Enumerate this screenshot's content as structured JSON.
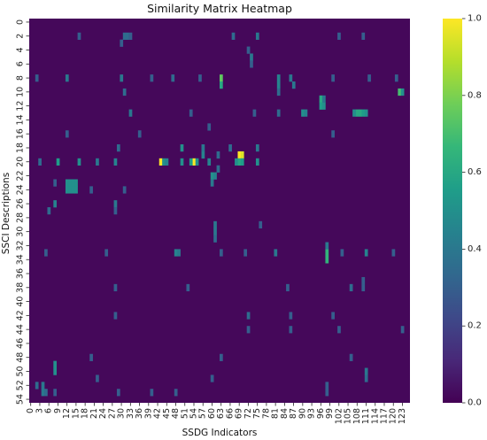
{
  "chart_data": {
    "type": "heatmap",
    "title": "Similarity Matrix Heatmap",
    "xlabel": "SSDG Indicators",
    "ylabel": "SSCI Descriptions",
    "n_cols": 126,
    "n_rows": 55,
    "x_ticks": [
      0,
      3,
      6,
      9,
      12,
      15,
      18,
      21,
      24,
      27,
      30,
      33,
      36,
      39,
      42,
      45,
      48,
      51,
      54,
      57,
      60,
      63,
      66,
      69,
      72,
      75,
      78,
      81,
      84,
      87,
      90,
      93,
      96,
      99,
      102,
      105,
      108,
      111,
      114,
      117,
      120,
      123
    ],
    "y_ticks": [
      0,
      2,
      4,
      6,
      8,
      10,
      12,
      14,
      16,
      18,
      20,
      22,
      24,
      26,
      28,
      30,
      32,
      34,
      36,
      38,
      40,
      42,
      44,
      46,
      48,
      50,
      52,
      54
    ],
    "value_range": [
      0,
      1
    ],
    "colormap": "viridis",
    "colorbar_ticks": [
      0.0,
      0.2,
      0.4,
      0.6,
      0.8,
      1.0
    ],
    "colorbar_tick_labels": [
      "0.0",
      "0.2",
      "0.4",
      "0.6",
      "0.8",
      "1.0"
    ],
    "base_value": 0.02,
    "cells": [
      {
        "r": 20,
        "c": 43,
        "v": 1.0
      },
      {
        "r": 20,
        "c": 54,
        "v": 1.0
      },
      {
        "r": 19,
        "c": 69,
        "v": 1.0
      },
      {
        "r": 19,
        "c": 70,
        "v": 0.95
      },
      {
        "r": 20,
        "c": 69,
        "v": 0.6
      },
      {
        "r": 20,
        "c": 70,
        "v": 0.55
      },
      {
        "r": 20,
        "c": 68,
        "v": 0.5
      },
      {
        "r": 20,
        "c": 44,
        "v": 0.5
      },
      {
        "r": 20,
        "c": 45,
        "v": 0.45
      },
      {
        "r": 20,
        "c": 53,
        "v": 0.55
      },
      {
        "r": 20,
        "c": 55,
        "v": 0.5
      },
      {
        "r": 20,
        "c": 9,
        "v": 0.55
      },
      {
        "r": 20,
        "c": 16,
        "v": 0.5
      },
      {
        "r": 20,
        "c": 28,
        "v": 0.45
      },
      {
        "r": 20,
        "c": 50,
        "v": 0.5
      },
      {
        "r": 20,
        "c": 59,
        "v": 0.45
      },
      {
        "r": 20,
        "c": 75,
        "v": 0.5
      },
      {
        "r": 20,
        "c": 22,
        "v": 0.4
      },
      {
        "r": 20,
        "c": 3,
        "v": 0.35
      },
      {
        "r": 19,
        "c": 57,
        "v": 0.45
      },
      {
        "r": 19,
        "c": 62,
        "v": 0.35
      },
      {
        "r": 18,
        "c": 50,
        "v": 0.5
      },
      {
        "r": 18,
        "c": 57,
        "v": 0.4
      },
      {
        "r": 18,
        "c": 29,
        "v": 0.35
      },
      {
        "r": 18,
        "c": 66,
        "v": 0.35
      },
      {
        "r": 18,
        "c": 75,
        "v": 0.4
      },
      {
        "r": 23,
        "c": 12,
        "v": 0.5
      },
      {
        "r": 23,
        "c": 13,
        "v": 0.5
      },
      {
        "r": 23,
        "c": 14,
        "v": 0.5
      },
      {
        "r": 23,
        "c": 15,
        "v": 0.5
      },
      {
        "r": 24,
        "c": 12,
        "v": 0.5
      },
      {
        "r": 24,
        "c": 13,
        "v": 0.5
      },
      {
        "r": 24,
        "c": 14,
        "v": 0.5
      },
      {
        "r": 24,
        "c": 15,
        "v": 0.5
      },
      {
        "r": 22,
        "c": 60,
        "v": 0.5
      },
      {
        "r": 22,
        "c": 61,
        "v": 0.45
      },
      {
        "r": 23,
        "c": 60,
        "v": 0.4
      },
      {
        "r": 21,
        "c": 62,
        "v": 0.35
      },
      {
        "r": 26,
        "c": 8,
        "v": 0.45
      },
      {
        "r": 27,
        "c": 6,
        "v": 0.35
      },
      {
        "r": 26,
        "c": 28,
        "v": 0.4
      },
      {
        "r": 27,
        "c": 28,
        "v": 0.3
      },
      {
        "r": 24,
        "c": 20,
        "v": 0.3
      },
      {
        "r": 24,
        "c": 31,
        "v": 0.3
      },
      {
        "r": 23,
        "c": 8,
        "v": 0.3
      },
      {
        "r": 29,
        "c": 61,
        "v": 0.4
      },
      {
        "r": 30,
        "c": 61,
        "v": 0.4
      },
      {
        "r": 31,
        "c": 61,
        "v": 0.35
      },
      {
        "r": 29,
        "c": 76,
        "v": 0.3
      },
      {
        "r": 33,
        "c": 98,
        "v": 0.65
      },
      {
        "r": 34,
        "c": 98,
        "v": 0.65
      },
      {
        "r": 32,
        "c": 98,
        "v": 0.4
      },
      {
        "r": 33,
        "c": 48,
        "v": 0.45
      },
      {
        "r": 33,
        "c": 49,
        "v": 0.4
      },
      {
        "r": 33,
        "c": 81,
        "v": 0.4
      },
      {
        "r": 33,
        "c": 111,
        "v": 0.45
      },
      {
        "r": 33,
        "c": 63,
        "v": 0.3
      },
      {
        "r": 33,
        "c": 71,
        "v": 0.3
      },
      {
        "r": 33,
        "c": 5,
        "v": 0.3
      },
      {
        "r": 33,
        "c": 25,
        "v": 0.3
      },
      {
        "r": 33,
        "c": 103,
        "v": 0.3
      },
      {
        "r": 33,
        "c": 120,
        "v": 0.3
      },
      {
        "r": 8,
        "c": 63,
        "v": 0.75
      },
      {
        "r": 9,
        "c": 63,
        "v": 0.6
      },
      {
        "r": 8,
        "c": 82,
        "v": 0.45
      },
      {
        "r": 9,
        "c": 82,
        "v": 0.45
      },
      {
        "r": 8,
        "c": 86,
        "v": 0.4
      },
      {
        "r": 9,
        "c": 87,
        "v": 0.4
      },
      {
        "r": 8,
        "c": 12,
        "v": 0.4
      },
      {
        "r": 8,
        "c": 30,
        "v": 0.4
      },
      {
        "r": 8,
        "c": 47,
        "v": 0.35
      },
      {
        "r": 8,
        "c": 2,
        "v": 0.3
      },
      {
        "r": 8,
        "c": 40,
        "v": 0.3
      },
      {
        "r": 8,
        "c": 56,
        "v": 0.3
      },
      {
        "r": 8,
        "c": 100,
        "v": 0.3
      },
      {
        "r": 8,
        "c": 112,
        "v": 0.3
      },
      {
        "r": 8,
        "c": 121,
        "v": 0.3
      },
      {
        "r": 10,
        "c": 122,
        "v": 0.7
      },
      {
        "r": 10,
        "c": 123,
        "v": 0.5
      },
      {
        "r": 10,
        "c": 82,
        "v": 0.35
      },
      {
        "r": 10,
        "c": 31,
        "v": 0.35
      },
      {
        "r": 11,
        "c": 96,
        "v": 0.6
      },
      {
        "r": 12,
        "c": 96,
        "v": 0.55
      },
      {
        "r": 12,
        "c": 97,
        "v": 0.5
      },
      {
        "r": 11,
        "c": 97,
        "v": 0.4
      },
      {
        "r": 13,
        "c": 108,
        "v": 0.6
      },
      {
        "r": 13,
        "c": 109,
        "v": 0.6
      },
      {
        "r": 13,
        "c": 110,
        "v": 0.55
      },
      {
        "r": 13,
        "c": 111,
        "v": 0.5
      },
      {
        "r": 13,
        "c": 107,
        "v": 0.5
      },
      {
        "r": 13,
        "c": 90,
        "v": 0.5
      },
      {
        "r": 13,
        "c": 91,
        "v": 0.45
      },
      {
        "r": 13,
        "c": 33,
        "v": 0.4
      },
      {
        "r": 13,
        "c": 82,
        "v": 0.35
      },
      {
        "r": 13,
        "c": 53,
        "v": 0.3
      },
      {
        "r": 13,
        "c": 74,
        "v": 0.3
      },
      {
        "r": 2,
        "c": 31,
        "v": 0.35
      },
      {
        "r": 2,
        "c": 32,
        "v": 0.35
      },
      {
        "r": 2,
        "c": 33,
        "v": 0.3
      },
      {
        "r": 2,
        "c": 67,
        "v": 0.35
      },
      {
        "r": 2,
        "c": 75,
        "v": 0.4
      },
      {
        "r": 3,
        "c": 30,
        "v": 0.3
      },
      {
        "r": 5,
        "c": 73,
        "v": 0.4
      },
      {
        "r": 6,
        "c": 73,
        "v": 0.3
      },
      {
        "r": 4,
        "c": 72,
        "v": 0.3
      },
      {
        "r": 2,
        "c": 102,
        "v": 0.3
      },
      {
        "r": 2,
        "c": 110,
        "v": 0.3
      },
      {
        "r": 2,
        "c": 16,
        "v": 0.3
      },
      {
        "r": 16,
        "c": 12,
        "v": 0.3
      },
      {
        "r": 16,
        "c": 36,
        "v": 0.3
      },
      {
        "r": 15,
        "c": 59,
        "v": 0.3
      },
      {
        "r": 16,
        "c": 100,
        "v": 0.3
      },
      {
        "r": 38,
        "c": 28,
        "v": 0.3
      },
      {
        "r": 38,
        "c": 106,
        "v": 0.35
      },
      {
        "r": 38,
        "c": 110,
        "v": 0.3
      },
      {
        "r": 38,
        "c": 52,
        "v": 0.3
      },
      {
        "r": 38,
        "c": 85,
        "v": 0.3
      },
      {
        "r": 37,
        "c": 110,
        "v": 0.3
      },
      {
        "r": 42,
        "c": 72,
        "v": 0.35
      },
      {
        "r": 42,
        "c": 28,
        "v": 0.3
      },
      {
        "r": 42,
        "c": 100,
        "v": 0.3
      },
      {
        "r": 42,
        "c": 86,
        "v": 0.3
      },
      {
        "r": 44,
        "c": 72,
        "v": 0.3
      },
      {
        "r": 44,
        "c": 86,
        "v": 0.3
      },
      {
        "r": 44,
        "c": 102,
        "v": 0.3
      },
      {
        "r": 44,
        "c": 123,
        "v": 0.3
      },
      {
        "r": 48,
        "c": 20,
        "v": 0.3
      },
      {
        "r": 48,
        "c": 63,
        "v": 0.3
      },
      {
        "r": 48,
        "c": 106,
        "v": 0.3
      },
      {
        "r": 49,
        "c": 8,
        "v": 0.5
      },
      {
        "r": 50,
        "c": 8,
        "v": 0.5
      },
      {
        "r": 50,
        "c": 111,
        "v": 0.4
      },
      {
        "r": 51,
        "c": 111,
        "v": 0.35
      },
      {
        "r": 51,
        "c": 22,
        "v": 0.3
      },
      {
        "r": 51,
        "c": 60,
        "v": 0.3
      },
      {
        "r": 52,
        "c": 4,
        "v": 0.4
      },
      {
        "r": 53,
        "c": 4,
        "v": 0.4
      },
      {
        "r": 53,
        "c": 5,
        "v": 0.35
      },
      {
        "r": 52,
        "c": 2,
        "v": 0.35
      },
      {
        "r": 53,
        "c": 8,
        "v": 0.3
      },
      {
        "r": 53,
        "c": 40,
        "v": 0.3
      },
      {
        "r": 53,
        "c": 48,
        "v": 0.3
      },
      {
        "r": 53,
        "c": 98,
        "v": 0.3
      },
      {
        "r": 52,
        "c": 98,
        "v": 0.3
      },
      {
        "r": 53,
        "c": 29,
        "v": 0.3
      }
    ]
  }
}
